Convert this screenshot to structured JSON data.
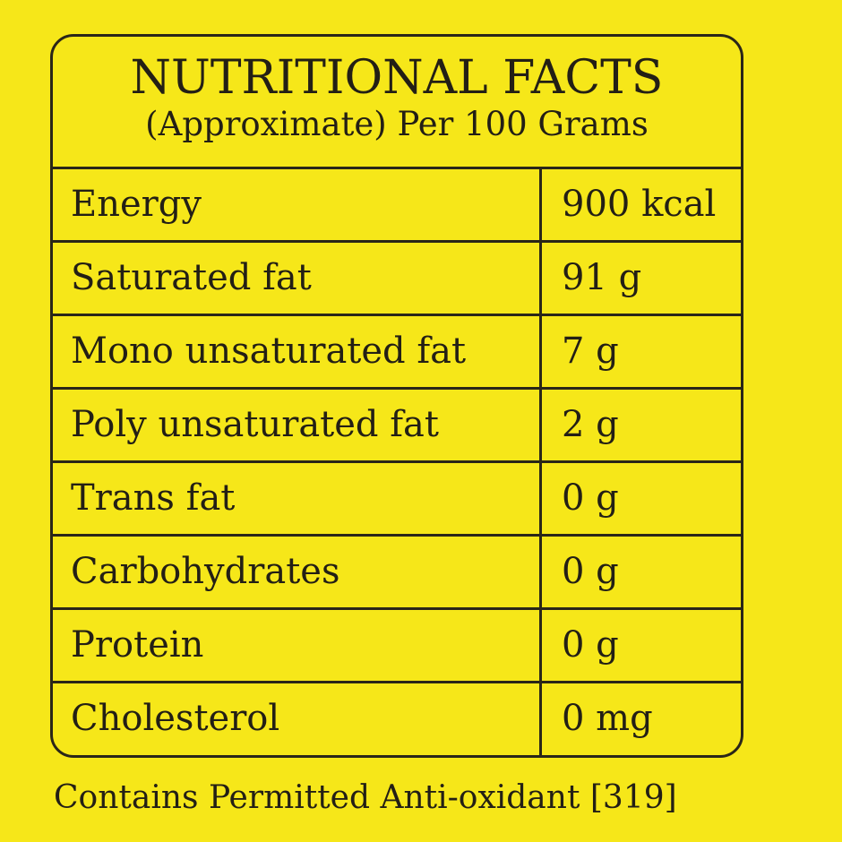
{
  "panel": {
    "title": "NUTRITIONAL FACTS",
    "subtitle": "(Approximate) Per 100 Grams"
  },
  "rows": [
    {
      "name": "Energy",
      "value": "900 kcal"
    },
    {
      "name": "Saturated fat",
      "value": "91 g"
    },
    {
      "name": "Mono unsaturated fat",
      "value": "7 g"
    },
    {
      "name": "Poly unsaturated fat",
      "value": "2 g"
    },
    {
      "name": "Trans fat",
      "value": "0 g"
    },
    {
      "name": "Carbohydrates",
      "value": "0 g"
    },
    {
      "name": "Protein",
      "value": "0 g"
    },
    {
      "name": "Cholesterol",
      "value": "0 mg"
    }
  ],
  "footer": {
    "text": "Contains Permitted Anti-oxidant [319]"
  },
  "colors": {
    "background": "#f6e719",
    "ink": "#231f15"
  }
}
